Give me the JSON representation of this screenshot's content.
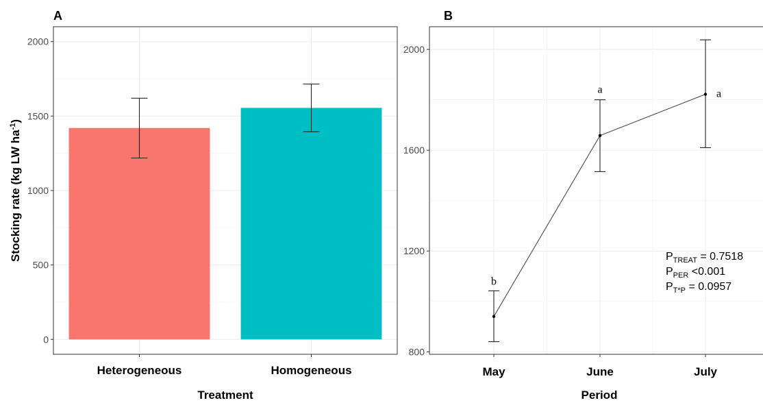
{
  "chart_data": [
    {
      "panel": "A",
      "type": "bar",
      "categories": [
        "Heterogeneous",
        "Homogeneous"
      ],
      "values": [
        1420,
        1555
      ],
      "error_low": [
        1218,
        1395
      ],
      "error_high": [
        1620,
        1715
      ],
      "colors": [
        "#F8766D",
        "#00BFC4"
      ],
      "xlabel": "Treatment",
      "ylabel": "Stocking rate (kg LW ha",
      "ylabel_sup": "-1",
      "ylabel_close": ")",
      "ylim": [
        -100,
        2100
      ],
      "yticks": [
        0,
        500,
        1000,
        1500,
        2000
      ],
      "ytick_labels": [
        "0",
        "500",
        "1000",
        "1500",
        "2000"
      ],
      "grid": true
    },
    {
      "panel": "B",
      "type": "line",
      "categories": [
        "May",
        "June",
        "July"
      ],
      "values": [
        940,
        1658,
        1822
      ],
      "error_low": [
        840,
        1515,
        1610
      ],
      "error_high": [
        1042,
        1800,
        2038
      ],
      "letters": [
        "b",
        "a",
        "a"
      ],
      "xlabel": "Period",
      "ylim": [
        790,
        2090
      ],
      "yticks": [
        800,
        1200,
        1600,
        2000
      ],
      "ytick_labels": [
        "800",
        "1200",
        "1600",
        "2000"
      ],
      "grid": true,
      "stats": [
        {
          "p": "P",
          "sub": "TREAT",
          "rest": " = 0.7518"
        },
        {
          "p": "P",
          "sub": "PER",
          "rest": " <0.001"
        },
        {
          "p": "P",
          "sub": "T*P",
          "rest": " = 0.0957"
        }
      ]
    }
  ]
}
